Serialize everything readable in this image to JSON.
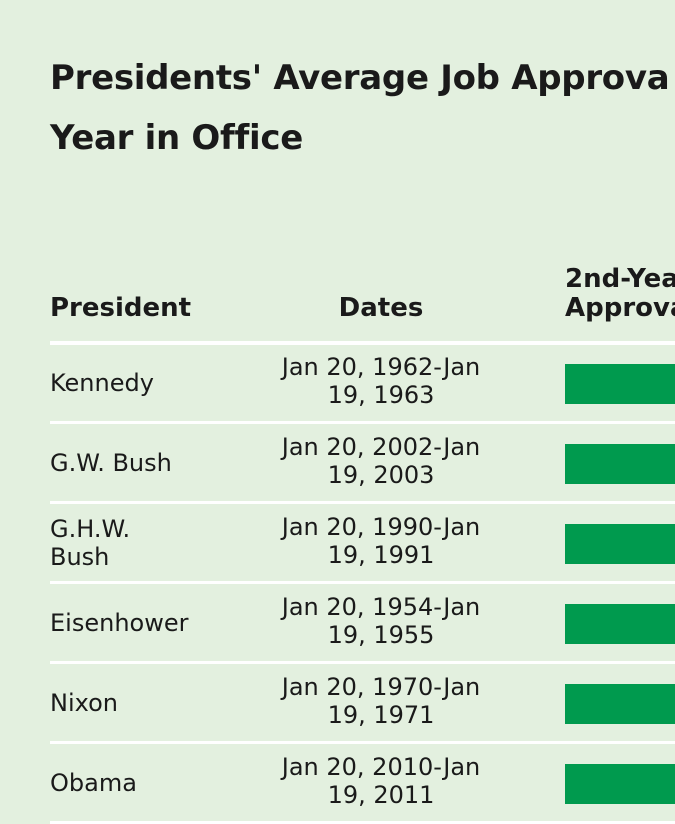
{
  "header": {
    "title_lines": [
      "Presidents' Average Job Approva",
      "Year in Office"
    ]
  },
  "table": {
    "columns": [
      "President",
      "Dates",
      "2nd-Yea\nApprova"
    ],
    "rows": [
      [
        "Kennedy",
        "Jan 20, 1962-Jan\n19, 1963"
      ],
      [
        "G.W. Bush",
        "Jan 20, 2002-Jan\n19, 2003"
      ],
      [
        "G.H.W.\nBush",
        "Jan 20, 1990-Jan\n19, 1991"
      ],
      [
        "Eisenhower",
        "Jan 20, 1954-Jan\n19, 1955"
      ],
      [
        "Nixon",
        "Jan 20, 1970-Jan\n19, 1971"
      ],
      [
        "Obama",
        "Jan 20, 2010-Jan\n19, 2011"
      ]
    ]
  }
}
